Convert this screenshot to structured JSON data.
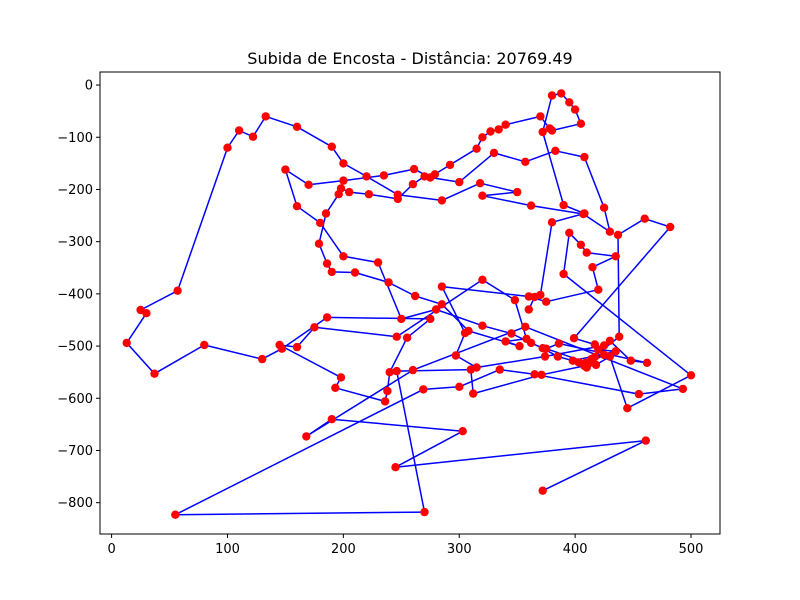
{
  "chart_data": {
    "type": "line",
    "title": "Subida de Encosta - Distância: 20769.49",
    "xlabel": "",
    "ylabel": "",
    "xlim": [
      -10,
      525
    ],
    "ylim": [
      -860,
      25
    ],
    "xticks": [
      0,
      100,
      200,
      300,
      400,
      500
    ],
    "yticks": [
      0,
      -100,
      -200,
      -300,
      -400,
      -500,
      -600,
      -700,
      -800
    ],
    "grid": false,
    "legend": "none",
    "line_color": "#0000ff",
    "marker_color": "#ff0000",
    "points_x": [
      372,
      461,
      245,
      303,
      190,
      168,
      260,
      357,
      493,
      455,
      365,
      335,
      300,
      269,
      55,
      270,
      246,
      310,
      312,
      371,
      408,
      425,
      417,
      399,
      482,
      460,
      437,
      438,
      414,
      409,
      417,
      430,
      448,
      462,
      386,
      375,
      412,
      410,
      398,
      435,
      420,
      425,
      374,
      315,
      297,
      305,
      285,
      360,
      375,
      420,
      415,
      435,
      410,
      405,
      395,
      390,
      500,
      445,
      430,
      418,
      403,
      385,
      372,
      362,
      345,
      320,
      280,
      250,
      230,
      200,
      180,
      160,
      150,
      170,
      200,
      235,
      261,
      275,
      300,
      330,
      357,
      383,
      408,
      425,
      430,
      407,
      362,
      320,
      350,
      318,
      285,
      247,
      220,
      200,
      190,
      160,
      133,
      122,
      110,
      100,
      57,
      25,
      30,
      13,
      37,
      80,
      130,
      147,
      186,
      275,
      255,
      240,
      238,
      236,
      193,
      198,
      145,
      160,
      175,
      246,
      320,
      348,
      358,
      340,
      352,
      308,
      285,
      262,
      239,
      210,
      190,
      186,
      179,
      185,
      196,
      198,
      205,
      222,
      247,
      260,
      270,
      279,
      292,
      315,
      320,
      327,
      334,
      340,
      370,
      378,
      380,
      405,
      400,
      395,
      388,
      380,
      372,
      390,
      408,
      380,
      370,
      365,
      360
    ],
    "points_y": [
      -777,
      -681,
      -732,
      -663,
      -640,
      -673,
      -546,
      -463,
      -582,
      -592,
      -554,
      -545,
      -578,
      -583,
      -823,
      -818,
      -548,
      -545,
      -591,
      -555,
      -538,
      -517,
      -497,
      -485,
      -272,
      -256,
      -287,
      -482,
      -525,
      -532,
      -521,
      -490,
      -528,
      -532,
      -495,
      -505,
      -533,
      -541,
      -528,
      -510,
      -507,
      -499,
      -520,
      -541,
      -518,
      -475,
      -386,
      -405,
      -415,
      -392,
      -349,
      -328,
      -321,
      -306,
      -283,
      -362,
      -556,
      -619,
      -520,
      -536,
      -531,
      -520,
      -504,
      -494,
      -476,
      -461,
      -430,
      -448,
      -340,
      -328,
      -264,
      -232,
      -162,
      -191,
      -183,
      -173,
      -161,
      -177,
      -186,
      -130,
      -147,
      -126,
      -138,
      -235,
      -281,
      -247,
      -231,
      -212,
      -205,
      -188,
      -221,
      -210,
      -175,
      -150,
      -118,
      -80,
      -60,
      -99,
      -87,
      -120,
      -394,
      -431,
      -437,
      -494,
      -553,
      -498,
      -525,
      -505,
      -445,
      -448,
      -484,
      -550,
      -586,
      -606,
      -580,
      -560,
      -498,
      -502,
      -464,
      -482,
      -373,
      -412,
      -486,
      -491,
      -500,
      -471,
      -420,
      -404,
      -378,
      -359,
      -358,
      -342,
      -304,
      -246,
      -209,
      -198,
      -205,
      -209,
      -218,
      -190,
      -175,
      -171,
      -153,
      -122,
      -100,
      -89,
      -85,
      -76,
      -60,
      -83,
      -87,
      -74,
      -47,
      -33,
      -16,
      -20,
      -90,
      -230,
      -246,
      -263,
      -402,
      -406,
      -430
    ]
  }
}
